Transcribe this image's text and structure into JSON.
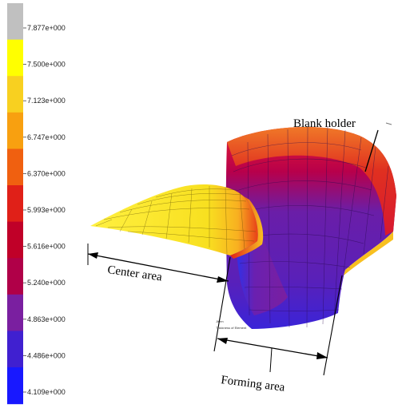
{
  "legend": {
    "ticks": [
      "7.877e+000",
      "7.500e+000",
      "7.123e+000",
      "6.747e+000",
      "6.370e+000",
      "5.993e+000",
      "5.616e+000",
      "5.240e+000",
      "4.863e+000",
      "4.486e+000",
      "4.109e+000"
    ],
    "colors": [
      "#c0c0c0",
      "#ffff00",
      "#f8d020",
      "#f8a010",
      "#f06010",
      "#e02018",
      "#c00028",
      "#b00048",
      "#7a1fa0",
      "#4020d0",
      "#1818ff"
    ]
  },
  "labels": {
    "blank_holder": "Blank holder",
    "center_area": "Center area",
    "forming_area": "Forming area",
    "inner_tag_1": "Jitem",
    "inner_tag_2": "Thickness of Element"
  }
}
